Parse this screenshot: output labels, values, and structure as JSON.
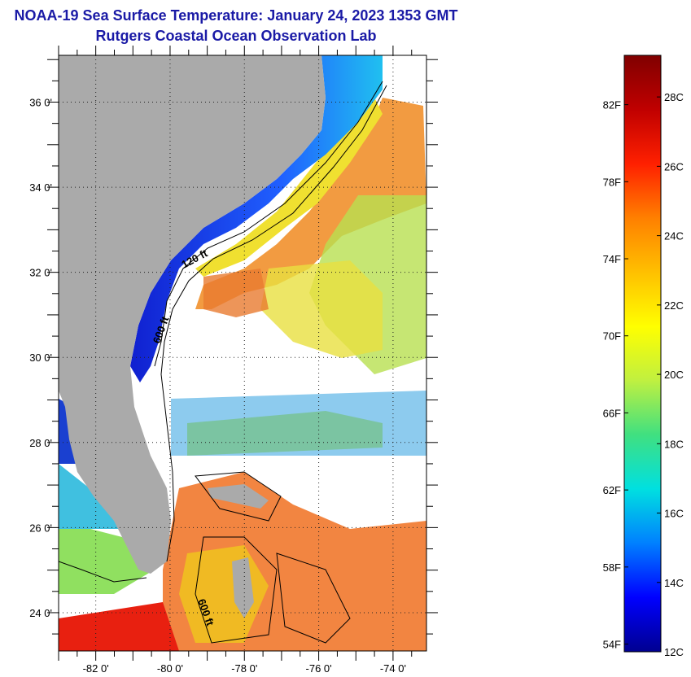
{
  "header": {
    "title_line1": "NOAA-19 Sea Surface Temperature:  January 24, 2023 1353 GMT",
    "title_line2": "Rutgers Coastal Ocean Observation Lab"
  },
  "map": {
    "lat_labels": [
      "36 0'",
      "34 0'",
      "32 0'",
      "30 0'",
      "28 0'",
      "26 0'",
      "24 0'"
    ],
    "lon_labels": [
      "-82 0'",
      "-80 0'",
      "-78 0'",
      "-76 0'",
      "-74 0'"
    ],
    "lat_values": [
      36,
      34,
      32,
      30,
      28,
      26,
      24
    ],
    "lon_values": [
      -82,
      -80,
      -78,
      -76,
      -74
    ],
    "lat_range": [
      23.1,
      37.1
    ],
    "lon_range": [
      -83.0,
      -73.1
    ],
    "contour_labels": [
      "120 ft",
      "600 ft",
      "600 ft"
    ],
    "colors": {
      "land": "#aaaaaa",
      "coastal_cold": "#1c2fd8",
      "gulf_stream": "#f07a1a",
      "no_data": "#ffffff"
    }
  },
  "colorbar": {
    "f_labels": [
      "82F",
      "78F",
      "74F",
      "70F",
      "66F",
      "62F",
      "58F",
      "54F"
    ],
    "c_labels": [
      "28C",
      "26C",
      "24C",
      "22C",
      "20C",
      "18C",
      "16C",
      "14C",
      "12C"
    ],
    "c_min": 12,
    "c_max": 29.2,
    "colormap": [
      "#000090",
      "#0000ff",
      "#0080ff",
      "#00e0e0",
      "#40e080",
      "#c0f040",
      "#ffff00",
      "#ffc000",
      "#ff8000",
      "#ff2000",
      "#c00000",
      "#800000"
    ]
  }
}
